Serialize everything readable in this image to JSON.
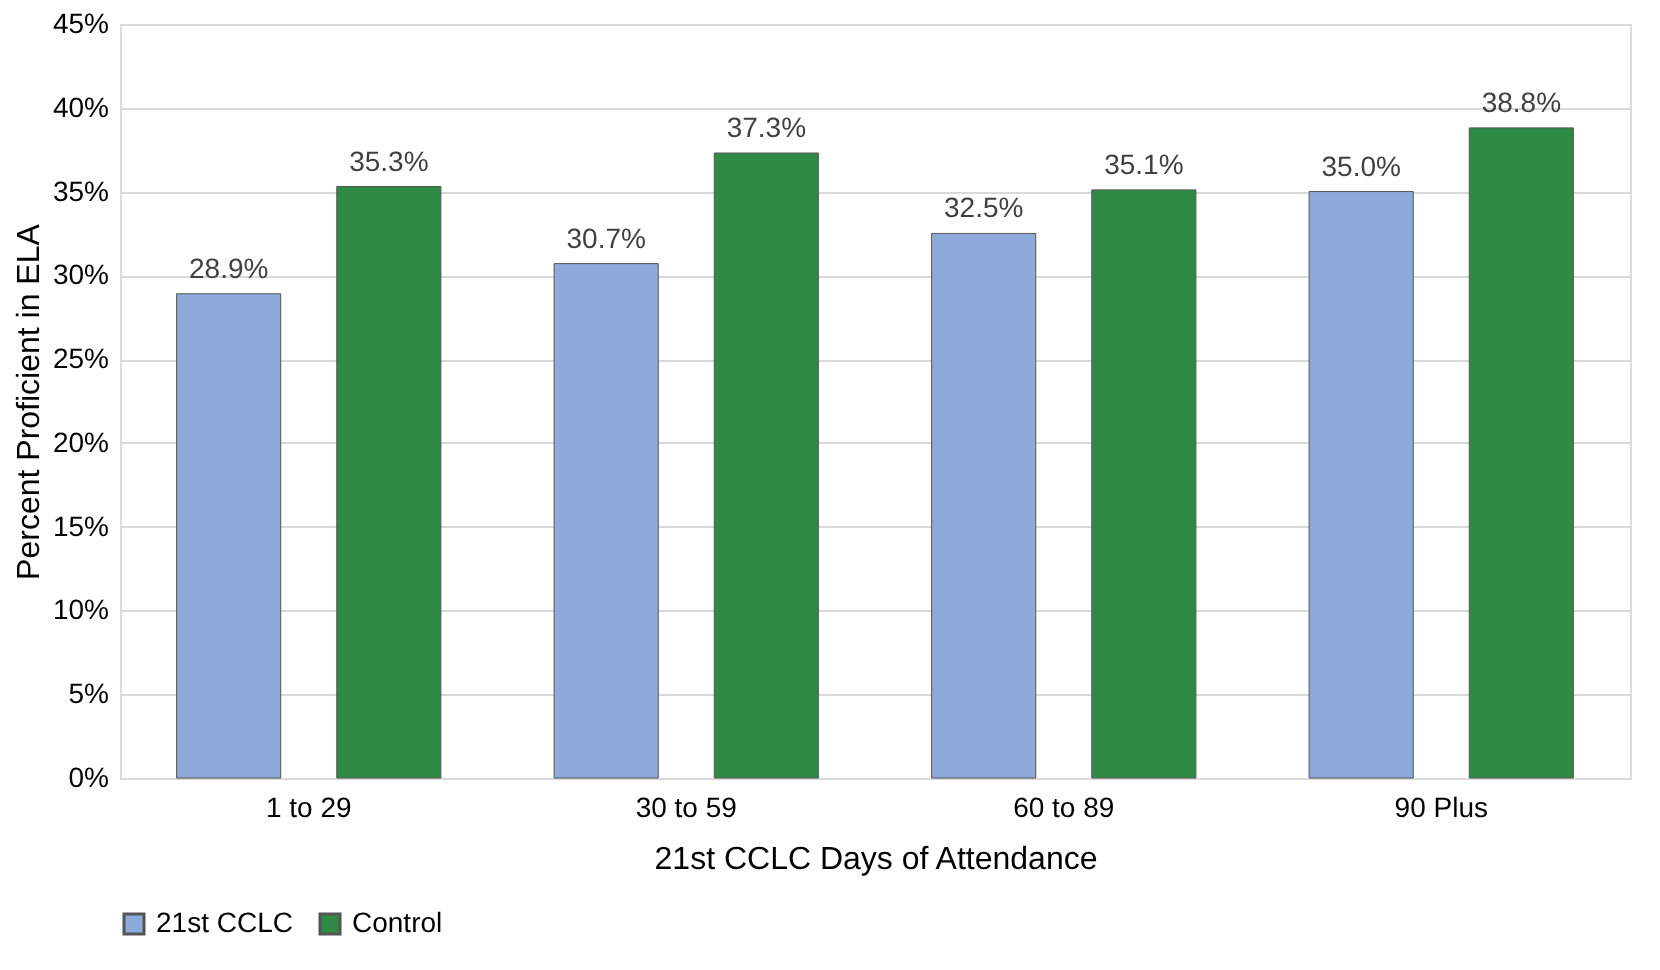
{
  "chart_data": {
    "type": "bar",
    "xlabel": "21st CCLC Days of Attendance",
    "ylabel": "Percent Proficient in ELA",
    "categories": [
      "1 to 29",
      "30 to 59",
      "60 to 89",
      "90 Plus"
    ],
    "series": [
      {
        "name": "21st CCLC",
        "color": "#8eaadb",
        "values": [
          28.9,
          30.7,
          32.5,
          35.0
        ],
        "value_labels": [
          "28.9%",
          "30.7%",
          "32.5%",
          "35.0%"
        ]
      },
      {
        "name": "Control",
        "color": "#2e8b46",
        "values": [
          35.3,
          37.3,
          35.1,
          38.8
        ],
        "value_labels": [
          "35.3%",
          "37.3%",
          "35.1%",
          "38.8%"
        ]
      }
    ],
    "ylim": [
      0,
      45
    ],
    "yticks": [
      {
        "value": 0,
        "label": "0%"
      },
      {
        "value": 5,
        "label": "5%"
      },
      {
        "value": 10,
        "label": "10%"
      },
      {
        "value": 15,
        "label": "15%"
      },
      {
        "value": 20,
        "label": "20%"
      },
      {
        "value": 25,
        "label": "25%"
      },
      {
        "value": 30,
        "label": "30%"
      },
      {
        "value": 35,
        "label": "35%"
      },
      {
        "value": 40,
        "label": "40%"
      },
      {
        "value": 45,
        "label": "45%"
      }
    ],
    "grid": "y",
    "legend": "bottom"
  }
}
